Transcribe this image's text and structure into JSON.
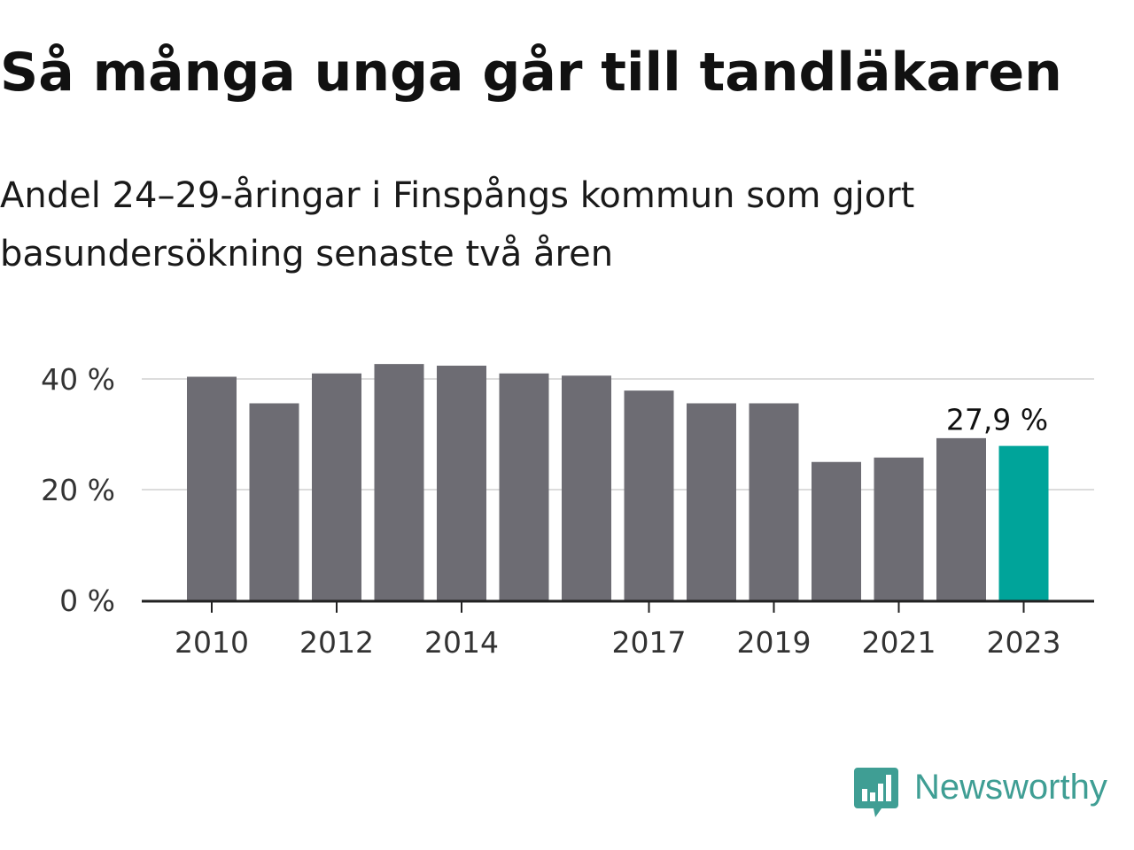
{
  "header": {
    "title": "Så många unga går till tandläkaren",
    "subtitle": "Andel 24–29-åringar i Finspångs kommun som gjort basundersökning senaste två åren"
  },
  "brand": {
    "name": "Newsworthy",
    "color": "#3f9e94"
  },
  "colors": {
    "bar": "#6d6c73",
    "highlight": "#00a49a",
    "grid": "#dcdcdc",
    "axis": "#222222"
  },
  "chart_data": {
    "type": "bar",
    "title": "Så många unga går till tandläkaren",
    "subtitle": "Andel 24–29-åringar i Finspångs kommun som gjort basundersökning senaste två åren",
    "xlabel": "",
    "ylabel": "",
    "categories": [
      "2010",
      "2011",
      "2012",
      "2013",
      "2014",
      "2015",
      "2016",
      "2017",
      "2018",
      "2019",
      "2020",
      "2021",
      "2022",
      "2023"
    ],
    "values": [
      40.4,
      35.6,
      41.0,
      42.7,
      42.4,
      41.0,
      40.6,
      37.9,
      35.6,
      35.6,
      25.0,
      25.8,
      29.3,
      27.9
    ],
    "unit": "%",
    "ylim": [
      0,
      45
    ],
    "yticks": [
      0,
      20,
      40
    ],
    "ytick_labels": [
      "0 %",
      "20 %",
      "40 %"
    ],
    "xtick_labels": [
      "2010",
      "2012",
      "2014",
      "2017",
      "2019",
      "2021",
      "2023"
    ],
    "highlight_index": 13,
    "highlight_label": "27,9 %",
    "grid": true,
    "legend": "none"
  }
}
